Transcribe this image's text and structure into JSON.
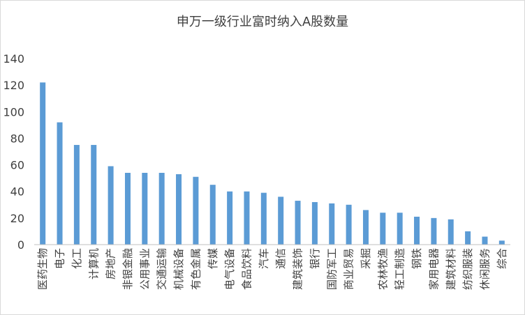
{
  "chart_data": {
    "type": "bar",
    "title": "申万一级行业富时纳入A股数量",
    "xlabel": "",
    "ylabel": "",
    "ylim": [
      0,
      140
    ],
    "yticks": [
      0,
      20,
      40,
      60,
      80,
      100,
      120,
      140
    ],
    "grid": false,
    "legend": "none",
    "bar_color": "#5b9bd5",
    "categories": [
      "医药生物",
      "电子",
      "化工",
      "计算机",
      "房地产",
      "非银金融",
      "公用事业",
      "交通运输",
      "机械设备",
      "有色金属",
      "传媒",
      "电气设备",
      "食品饮料",
      "汽车",
      "通信",
      "建筑装饰",
      "银行",
      "国防军工",
      "商业贸易",
      "采掘",
      "农林牧渔",
      "轻工制造",
      "钢铁",
      "家用电器",
      "建筑材料",
      "纺织服装",
      "休闲服务",
      "综合"
    ],
    "values": [
      122,
      92,
      75,
      75,
      59,
      54,
      54,
      54,
      53,
      51,
      45,
      40,
      40,
      39,
      36,
      33,
      32,
      31,
      30,
      26,
      24,
      24,
      21,
      20,
      19,
      10,
      6,
      3
    ]
  }
}
